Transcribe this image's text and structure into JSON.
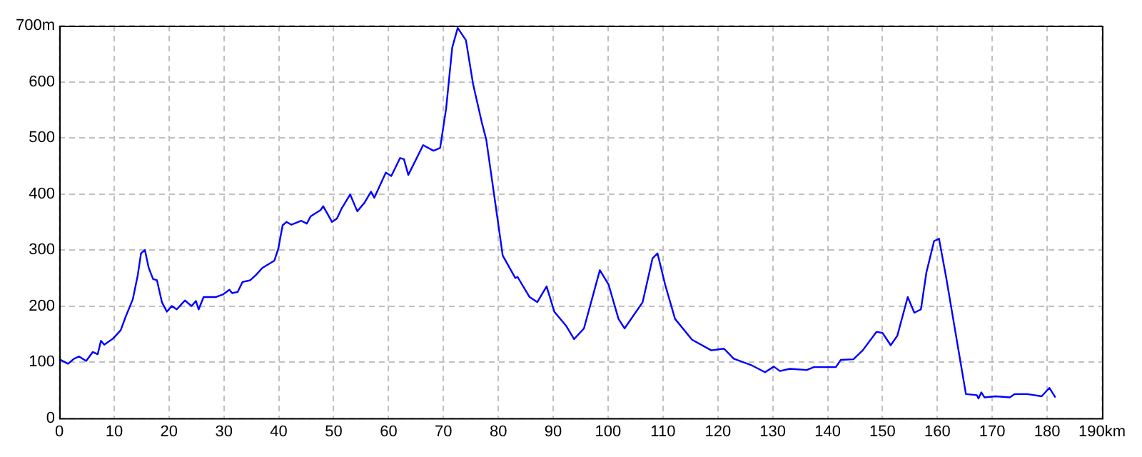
{
  "chart_data": {
    "type": "line",
    "marker": "none",
    "line_style": "solid",
    "grid": true,
    "legend": false,
    "xlim": [
      0,
      190
    ],
    "xticks": [
      0,
      10,
      20,
      30,
      40,
      50,
      60,
      70,
      80,
      90,
      100,
      110,
      120,
      130,
      140,
      150,
      160,
      170,
      180,
      {
        "value": 190,
        "label": "190km"
      }
    ],
    "ylim": [
      0,
      700
    ],
    "yticks": [
      0,
      100,
      200,
      300,
      400,
      500,
      600,
      {
        "value": 700,
        "label": "700m"
      }
    ],
    "series": [
      {
        "color": "#0000ff",
        "x": [
          0,
          1.6,
          2.7,
          3.6,
          4.9,
          6.1,
          7.0,
          7.6,
          8.2,
          9.8,
          11.2,
          12.1,
          13.4,
          14.3,
          14.9,
          15.6,
          16.3,
          17.1,
          17.8,
          18.7,
          19.6,
          20.5,
          21.4,
          22.9,
          24.1,
          24.9,
          25.4,
          26.3,
          28.5,
          29.9,
          31.0,
          31.5,
          32.5,
          33.4,
          34.8,
          35.8,
          37.0,
          39.2,
          39.9,
          40.7,
          41.4,
          42.3,
          44.1,
          45.1,
          45.8,
          47.6,
          48.1,
          49.7,
          50.6,
          51.4,
          53.0,
          54.3,
          55.6,
          56.8,
          57.4,
          59.5,
          60.5,
          62.1,
          62.8,
          63.6,
          66.3,
          68.2,
          69.4,
          70.5,
          71.6,
          72.6,
          74.1,
          75.4,
          77.0,
          77.8,
          79.5,
          80.8,
          83.1,
          83.5,
          85.7,
          87.1,
          88.8,
          90.2,
          92.4,
          93.8,
          95.6,
          98.5,
          100.1,
          101.9,
          103.0,
          106.3,
          108.1,
          109.0,
          110.4,
          112.2,
          115.3,
          118.8,
          121.1,
          122.9,
          126.0,
          128.6,
          130.2,
          131.3,
          133.1,
          136.2,
          137.5,
          141.5,
          142.4,
          144.7,
          146.4,
          148.9,
          150.0,
          151.5,
          152.7,
          154.6,
          155.8,
          157.0,
          158.0,
          159.4,
          160.3,
          161.6,
          162.5,
          164.3,
          165.2,
          167.2,
          167.5,
          168.0,
          168.6,
          170.6,
          173.2,
          174.1,
          176.4,
          179.0,
          180.4,
          181.5
        ],
        "values": [
          105,
          97,
          106,
          110,
          102,
          118,
          114,
          138,
          131,
          142,
          157,
          181,
          212,
          255,
          294,
          300,
          268,
          248,
          246,
          207,
          190,
          200,
          194,
          210,
          200,
          209,
          194,
          216,
          216,
          221,
          229,
          223,
          225,
          243,
          246,
          255,
          268,
          281,
          302,
          344,
          350,
          345,
          352,
          347,
          360,
          371,
          378,
          350,
          356,
          373,
          399,
          369,
          384,
          404,
          393,
          438,
          432,
          464,
          462,
          434,
          487,
          477,
          482,
          553,
          661,
          696,
          674,
          596,
          527,
          497,
          380,
          290,
          250,
          252,
          216,
          207,
          235,
          190,
          164,
          141,
          160,
          264,
          238,
          177,
          160,
          207,
          285,
          294,
          238,
          177,
          140,
          121,
          124,
          106,
          95,
          82,
          92,
          84,
          88,
          86,
          91,
          91,
          104,
          105,
          121,
          154,
          152,
          130,
          147,
          216,
          188,
          194,
          260,
          316,
          320,
          251,
          199,
          95,
          43,
          41,
          35,
          46,
          37,
          39,
          37,
          43,
          43,
          39,
          54,
          37
        ]
      }
    ]
  }
}
